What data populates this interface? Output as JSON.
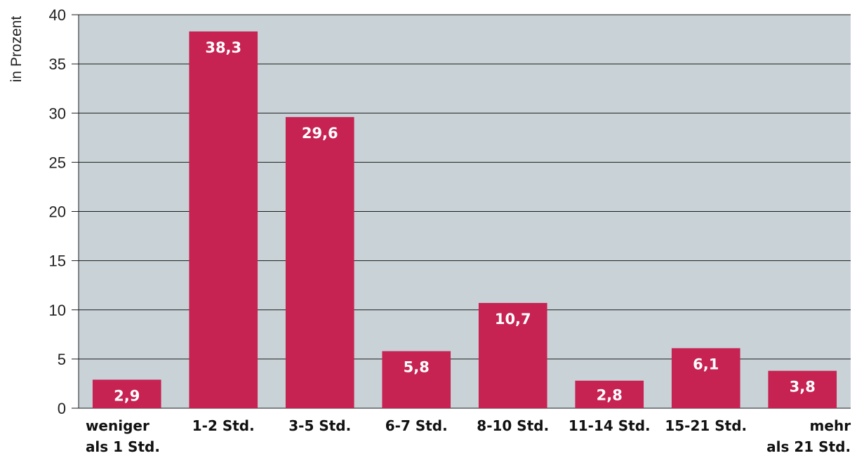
{
  "chart_data": {
    "type": "bar",
    "ylabel": "in Prozent",
    "ylim": [
      0,
      40
    ],
    "yticks": [
      0,
      5,
      10,
      15,
      20,
      25,
      30,
      35,
      40
    ],
    "categories": [
      [
        "weniger",
        "als 1 Std."
      ],
      [
        "1-2 Std."
      ],
      [
        "3-5 Std."
      ],
      [
        "6-7 Std."
      ],
      [
        "8-10 Std."
      ],
      [
        "11-14 Std."
      ],
      [
        "15-21 Std."
      ],
      [
        "mehr",
        "als 21 Std."
      ]
    ],
    "values": [
      2.9,
      38.3,
      29.6,
      5.8,
      10.7,
      2.8,
      6.1,
      3.8
    ],
    "value_labels": [
      "2,9",
      "38,3",
      "29,6",
      "5,8",
      "10,7",
      "2,8",
      "6,1",
      "3,8"
    ],
    "grid": true,
    "colors": {
      "bar": "#c62252",
      "plot_background": "#c9d3d7",
      "grid": "#1a1a1a"
    }
  }
}
